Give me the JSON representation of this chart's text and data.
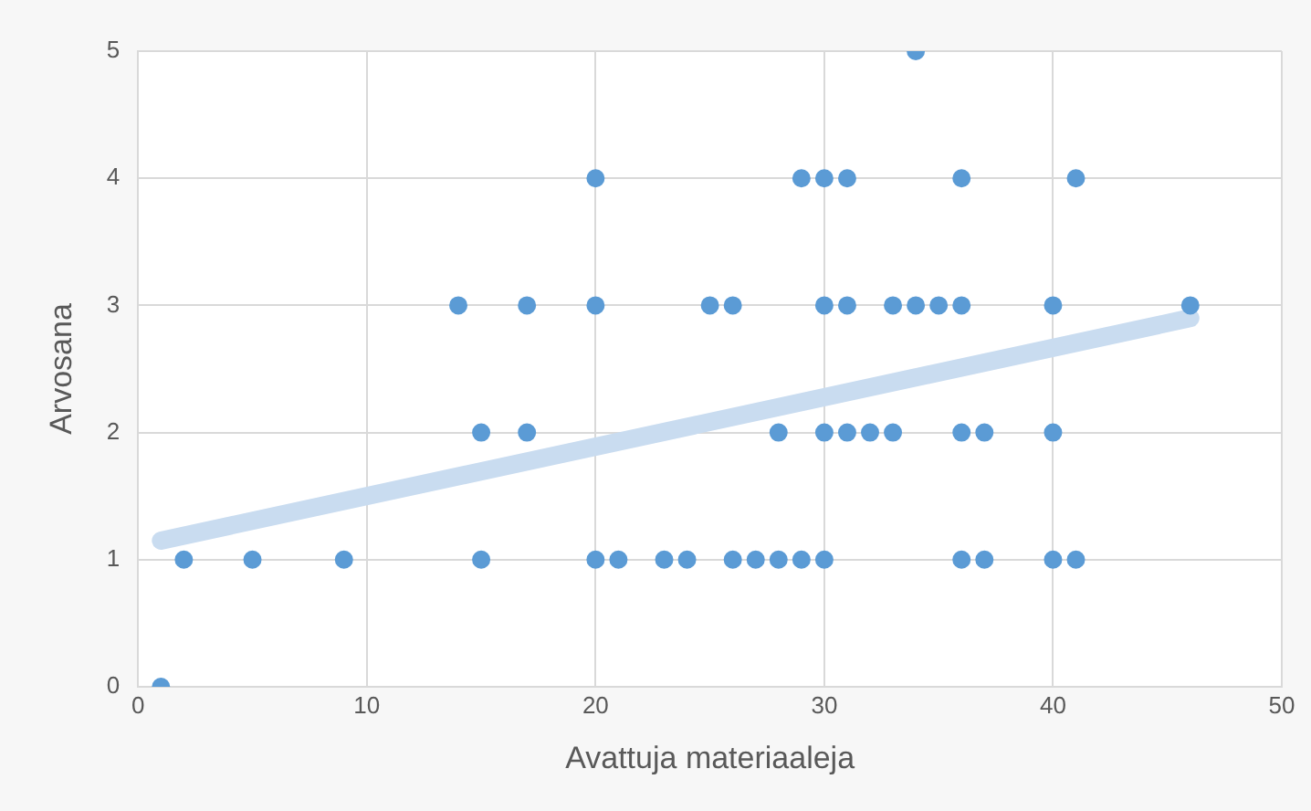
{
  "chart_data": {
    "type": "scatter",
    "xlabel": "Avattuja materiaaleja",
    "ylabel": "Arvosana",
    "xlim": [
      0,
      50
    ],
    "xticks": [
      0,
      10,
      20,
      30,
      40,
      50
    ],
    "ylim": [
      0,
      5
    ],
    "yticks": [
      0,
      1,
      2,
      3,
      4,
      5
    ],
    "grid": true,
    "marker": "circle",
    "series": [
      {
        "type": "line",
        "marker": "none",
        "color": "#c9dcf0",
        "x": [
          1,
          46
        ],
        "values": [
          1.15,
          2.9
        ]
      },
      {
        "color": "#5b9bd5",
        "x": [
          1,
          2,
          5,
          9,
          15,
          20,
          21,
          23,
          24,
          26,
          27,
          28,
          29,
          30,
          36,
          37,
          40,
          41,
          15,
          17,
          28,
          30,
          31,
          32,
          33,
          36,
          37,
          40,
          14,
          17,
          20,
          25,
          26,
          30,
          31,
          33,
          34,
          35,
          36,
          40,
          46,
          20,
          29,
          30,
          31,
          36,
          41,
          34
        ],
        "values": [
          0,
          1,
          1,
          1,
          1,
          1,
          1,
          1,
          1,
          1,
          1,
          1,
          1,
          1,
          1,
          1,
          1,
          1,
          2,
          2,
          2,
          2,
          2,
          2,
          2,
          2,
          2,
          2,
          3,
          3,
          3,
          3,
          3,
          3,
          3,
          3,
          3,
          3,
          3,
          3,
          3,
          4,
          4,
          4,
          4,
          4,
          4,
          5
        ]
      }
    ]
  }
}
